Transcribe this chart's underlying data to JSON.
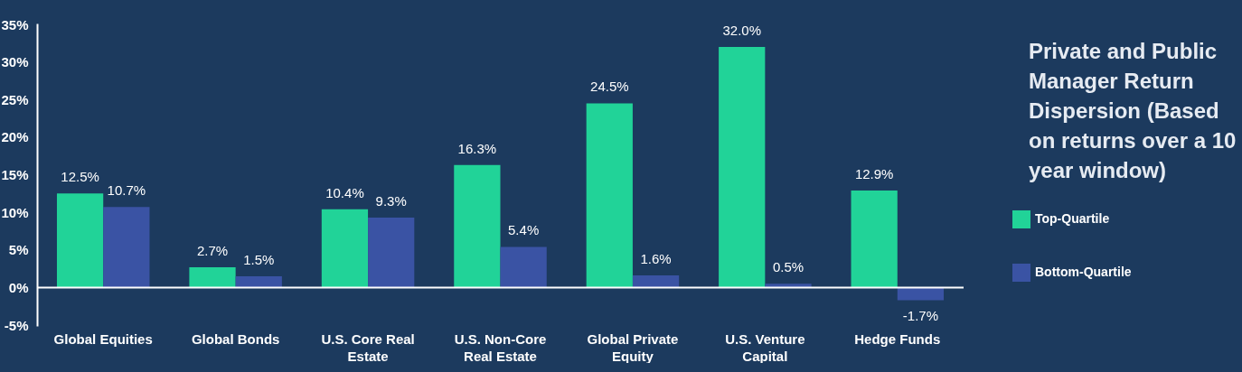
{
  "chart_data": {
    "type": "bar",
    "title": "Private and Public Manager Return Dispersion (Based on returns over a 10 year window)",
    "categories": [
      "Global Equities",
      "Global Bonds",
      "U.S. Core Real Estate",
      "U.S. Non-Core Real Estate",
      "Global Private Equity",
      "U.S. Venture Capital",
      "Hedge Funds"
    ],
    "series": [
      {
        "name": "Top-Quartile",
        "color": "#21d398",
        "values": [
          12.5,
          2.7,
          10.4,
          16.3,
          24.5,
          32.0,
          12.9
        ],
        "value_labels": [
          "12.5%",
          "2.7%",
          "10.4%",
          "16.3%",
          "24.5%",
          "32.0%",
          "12.9%"
        ]
      },
      {
        "name": "Bottom-Quartile",
        "color": "#3a53a4",
        "values": [
          10.7,
          1.5,
          9.3,
          5.4,
          1.6,
          0.5,
          -1.7
        ],
        "value_labels": [
          "10.7%",
          "1.5%",
          "9.3%",
          "5.4%",
          "1.6%",
          "0.5%",
          "-1.7%"
        ]
      }
    ],
    "ylim": [
      -5,
      35
    ],
    "yticks": [
      {
        "value": -5,
        "label": "-5%"
      },
      {
        "value": 0,
        "label": "0%"
      },
      {
        "value": 5,
        "label": "5%"
      },
      {
        "value": 10,
        "label": "10%"
      },
      {
        "value": 15,
        "label": "15%"
      },
      {
        "value": 20,
        "label": "20%"
      },
      {
        "value": 25,
        "label": "25%"
      },
      {
        "value": 30,
        "label": "30%"
      },
      {
        "value": 35,
        "label": "35%"
      }
    ],
    "ref_lines": [
      {
        "axis": "y",
        "value": 0,
        "color": "#ffffff"
      }
    ],
    "grid": false,
    "legend": "right"
  }
}
